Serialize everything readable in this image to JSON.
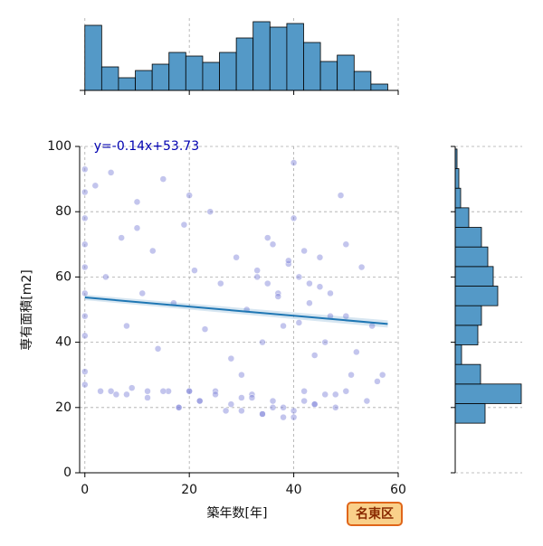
{
  "chart_data": {
    "type": "joint",
    "xlabel": "築年数[年]",
    "ylabel": "専有面積[m2]",
    "badge": "名東区",
    "annotation": "y=-0.14x+53.73",
    "regression": {
      "slope": -0.14,
      "intercept": 53.73,
      "x": [
        0,
        58
      ],
      "color": "#1f77b4"
    },
    "xlim": [
      -1,
      60
    ],
    "xticks": [
      0,
      20,
      40,
      60
    ],
    "ylim": [
      0,
      100
    ],
    "yticks": [
      0,
      20,
      40,
      60,
      80,
      100
    ],
    "grid": true,
    "scatter": {
      "color": "#7b7fd8",
      "x": [
        0,
        0,
        0,
        0,
        0,
        0,
        0,
        0,
        0,
        0,
        2,
        3,
        4,
        5,
        6,
        7,
        8,
        9,
        10,
        11,
        12,
        13,
        14,
        15,
        16,
        17,
        18,
        19,
        20,
        21,
        22,
        23,
        24,
        25,
        26,
        27,
        28,
        29,
        30,
        31,
        32,
        33,
        34,
        35,
        36,
        37,
        38,
        39,
        40,
        41,
        42,
        43,
        44,
        45,
        46,
        47,
        48,
        49,
        50,
        51,
        52,
        53,
        54,
        55,
        56,
        57,
        5,
        8,
        12,
        15,
        18,
        20,
        22,
        25,
        28,
        30,
        32,
        34,
        36,
        38,
        40,
        42,
        44,
        46,
        48,
        50,
        33,
        35,
        37,
        39,
        41,
        43,
        45,
        47,
        34,
        36,
        38,
        40,
        42,
        44,
        10,
        20,
        30,
        40,
        50
      ],
      "y": [
        93,
        86,
        78,
        70,
        63,
        55,
        48,
        42,
        31,
        27,
        88,
        25,
        60,
        92,
        24,
        72,
        45,
        26,
        83,
        55,
        25,
        68,
        38,
        90,
        25,
        52,
        20,
        76,
        25,
        62,
        22,
        44,
        80,
        25,
        58,
        19,
        35,
        66,
        23,
        50,
        24,
        60,
        18,
        72,
        22,
        55,
        20,
        64,
        17,
        46,
        25,
        58,
        21,
        66,
        40,
        55,
        24,
        85,
        48,
        30,
        37,
        63,
        22,
        45,
        28,
        30,
        25,
        24,
        23,
        25,
        20,
        25,
        22,
        24,
        21,
        19,
        23,
        18,
        20,
        17,
        19,
        22,
        21,
        24,
        20,
        25,
        62,
        58,
        54,
        65,
        60,
        52,
        57,
        48,
        40,
        70,
        45,
        78,
        68,
        36,
        75,
        85,
        30,
        95,
        70
      ]
    },
    "top_hist": {
      "color": "#5499c7",
      "bins": [
        0,
        3.22,
        6.44,
        9.67,
        12.89,
        16.11,
        19.33,
        22.56,
        25.78,
        29,
        32.22,
        35.44,
        38.67,
        41.89,
        45.11,
        48.33,
        51.56,
        54.78,
        58
      ],
      "counts": [
        72,
        26,
        14,
        22,
        29,
        42,
        38,
        31,
        42,
        58,
        76,
        70,
        74,
        53,
        32,
        39,
        21,
        7
      ],
      "ylim": [
        0,
        80
      ]
    },
    "right_hist": {
      "color": "#5499c7",
      "bins": [
        15.2,
        21.2,
        27.2,
        33.2,
        39.2,
        45.2,
        51.2,
        57.2,
        63.2,
        69.2,
        75.2,
        81.2,
        87.2,
        93.2,
        99.2
      ],
      "counts": [
        33,
        73,
        28,
        7,
        25,
        29,
        47,
        42,
        36,
        29,
        15,
        6,
        4,
        2
      ],
      "xlim": [
        0,
        74
      ]
    }
  }
}
